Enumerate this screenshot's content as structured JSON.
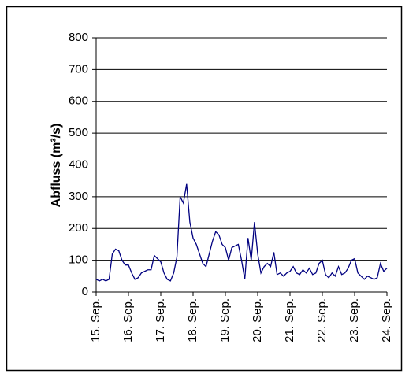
{
  "chart_data": {
    "type": "line",
    "y_label": "Abfluss (m³/s)",
    "x": [
      15.0,
      15.1,
      15.2,
      15.3,
      15.4,
      15.5,
      15.6,
      15.7,
      15.8,
      15.9,
      16.0,
      16.1,
      16.2,
      16.3,
      16.4,
      16.5,
      16.6,
      16.7,
      16.8,
      16.9,
      17.0,
      17.1,
      17.2,
      17.3,
      17.4,
      17.5,
      17.6,
      17.7,
      17.8,
      17.9,
      18.0,
      18.1,
      18.2,
      18.3,
      18.4,
      18.5,
      18.6,
      18.7,
      18.8,
      18.9,
      19.0,
      19.1,
      19.2,
      19.3,
      19.4,
      19.5,
      19.6,
      19.7,
      19.8,
      19.9,
      20.0,
      20.1,
      20.2,
      20.3,
      20.4,
      20.5,
      20.6,
      20.7,
      20.8,
      20.9,
      21.0,
      21.1,
      21.2,
      21.3,
      21.4,
      21.5,
      21.6,
      21.7,
      21.8,
      21.9,
      22.0,
      22.1,
      22.2,
      22.3,
      22.4,
      22.5,
      22.6,
      22.7,
      22.8,
      22.9,
      23.0,
      23.1,
      23.2,
      23.3,
      23.4,
      23.5,
      23.6,
      23.7,
      23.8,
      23.9,
      24.0
    ],
    "values": [
      40,
      35,
      40,
      35,
      40,
      120,
      135,
      130,
      100,
      85,
      85,
      60,
      40,
      45,
      60,
      65,
      70,
      70,
      115,
      105,
      95,
      60,
      40,
      35,
      60,
      110,
      300,
      280,
      340,
      220,
      170,
      150,
      120,
      90,
      80,
      120,
      160,
      190,
      180,
      150,
      140,
      100,
      140,
      145,
      150,
      100,
      40,
      170,
      100,
      220,
      120,
      60,
      80,
      90,
      80,
      125,
      55,
      60,
      50,
      60,
      65,
      80,
      60,
      55,
      70,
      60,
      75,
      55,
      60,
      90,
      100,
      55,
      45,
      60,
      50,
      80,
      55,
      60,
      75,
      100,
      105,
      60,
      50,
      40,
      50,
      45,
      40,
      45,
      90,
      65,
      75
    ],
    "color": "#000080",
    "xlim": [
      15,
      24
    ],
    "xticks": [
      {
        "value": 15,
        "label": "15. Sep."
      },
      {
        "value": 16,
        "label": "16. Sep."
      },
      {
        "value": 17,
        "label": "17. Sep."
      },
      {
        "value": 18,
        "label": "18. Sep."
      },
      {
        "value": 19,
        "label": "19. Sep."
      },
      {
        "value": 20,
        "label": "20. Sep."
      },
      {
        "value": 21,
        "label": "21. Sep."
      },
      {
        "value": 22,
        "label": "22. Sep."
      },
      {
        "value": 23,
        "label": "23. Sep."
      },
      {
        "value": 24,
        "label": "24. Sep."
      }
    ],
    "ylim": [
      0,
      800
    ],
    "yticks": [
      0,
      100,
      200,
      300,
      400,
      500,
      600,
      700,
      800
    ],
    "grid": true
  }
}
